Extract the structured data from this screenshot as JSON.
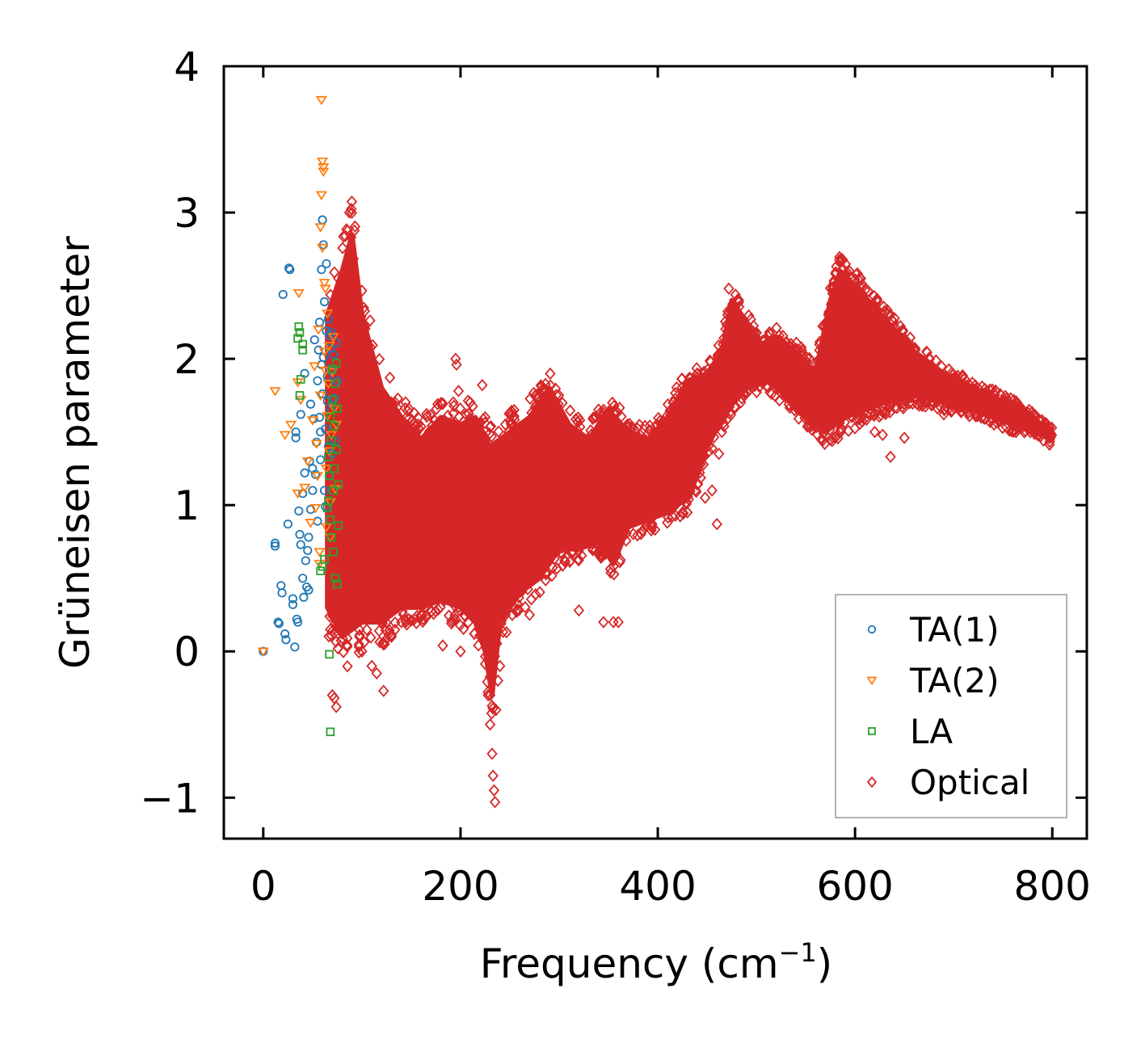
{
  "chart_data": {
    "type": "scatter",
    "title": "",
    "xlabel": "Frequency (cm",
    "xlabel_sup": "−1",
    "xlabel_close": ")",
    "ylabel": "Grüneisen parameter",
    "xlim": [
      -40,
      835
    ],
    "ylim": [
      -1.28,
      4.0
    ],
    "xticks": [
      0,
      200,
      400,
      600,
      800
    ],
    "xtick_labels": [
      "0",
      "200",
      "400",
      "600",
      "800"
    ],
    "yticks": [
      -1,
      0,
      1,
      2,
      3,
      4
    ],
    "ytick_labels": [
      "−1",
      "0",
      "1",
      "2",
      "3",
      "4"
    ],
    "grid": false,
    "legend_position": "lower-right",
    "series": [
      {
        "name": "TA(1)",
        "marker": "circle",
        "color": "#1f77b4",
        "points": [
          [
            0,
            0
          ],
          [
            12,
            0.72
          ],
          [
            12,
            0.74
          ],
          [
            15,
            0.2
          ],
          [
            16,
            0.19
          ],
          [
            18,
            0.45
          ],
          [
            19,
            0.4
          ],
          [
            20,
            2.44
          ],
          [
            22,
            0.12
          ],
          [
            23,
            0.08
          ],
          [
            25,
            0.87
          ],
          [
            26,
            2.62
          ],
          [
            27,
            2.61
          ],
          [
            30,
            0.36
          ],
          [
            30,
            0.32
          ],
          [
            32,
            0.03
          ],
          [
            33,
            1.5
          ],
          [
            33,
            1.46
          ],
          [
            34,
            0.22
          ],
          [
            35,
            0.2
          ],
          [
            36,
            0.96
          ],
          [
            37,
            0.8
          ],
          [
            38,
            0.73
          ],
          [
            38,
            1.62
          ],
          [
            40,
            0.5
          ],
          [
            40,
            1.08
          ],
          [
            41,
            0.37
          ],
          [
            42,
            1.22
          ],
          [
            42,
            1.9
          ],
          [
            43,
            0.62
          ],
          [
            44,
            0.44
          ],
          [
            45,
            0.69
          ],
          [
            46,
            0.78
          ],
          [
            46,
            0.42
          ],
          [
            47,
            1.3
          ],
          [
            48,
            0.97
          ],
          [
            48,
            1.69
          ],
          [
            50,
            1.25
          ],
          [
            50,
            1.1
          ],
          [
            51,
            1.59
          ],
          [
            52,
            2.13
          ],
          [
            53,
            1.21
          ],
          [
            54,
            1.43
          ],
          [
            55,
            1.85
          ],
          [
            55,
            0.89
          ],
          [
            56,
            2.06
          ],
          [
            57,
            2.25
          ],
          [
            57,
            1.6
          ],
          [
            58,
            1.5
          ],
          [
            58,
            1.31
          ],
          [
            59,
            1.96
          ],
          [
            59,
            2.61
          ],
          [
            60,
            2.95
          ],
          [
            60,
            1.76
          ],
          [
            61,
            2.78
          ],
          [
            61,
            2.01
          ],
          [
            62,
            2.39
          ],
          [
            62,
            1.1
          ],
          [
            63,
            1.52
          ],
          [
            63,
            0.99
          ],
          [
            64,
            2.19
          ],
          [
            64,
            2.65
          ],
          [
            65,
            1.71
          ],
          [
            65,
            1.88
          ],
          [
            66,
            2.27
          ],
          [
            66,
            1.4
          ],
          [
            67,
            2.16
          ],
          [
            67,
            1.2
          ],
          [
            68,
            1.92
          ],
          [
            68,
            2.07
          ],
          [
            69,
            2.18
          ],
          [
            69,
            1.65
          ],
          [
            70,
            1.35
          ],
          [
            71,
            2.03
          ],
          [
            72,
            1.73
          ],
          [
            73,
            1.44
          ],
          [
            74,
            2.11
          ],
          [
            75,
            1.85
          ]
        ]
      },
      {
        "name": "TA(2)",
        "marker": "triangle-down",
        "color": "#ff7f0e",
        "points": [
          [
            0,
            0
          ],
          [
            12,
            1.78
          ],
          [
            22,
            1.48
          ],
          [
            28,
            1.55
          ],
          [
            35,
            1.08
          ],
          [
            35,
            1.84
          ],
          [
            36,
            2.45
          ],
          [
            38,
            1.72
          ],
          [
            42,
            1.12
          ],
          [
            45,
            1.3
          ],
          [
            48,
            0.88
          ],
          [
            50,
            1.58
          ],
          [
            52,
            1.95
          ],
          [
            53,
            0.98
          ],
          [
            54,
            1.42
          ],
          [
            55,
            1.2
          ],
          [
            56,
            2.2
          ],
          [
            57,
            0.68
          ],
          [
            57,
            0.6
          ],
          [
            58,
            2.9
          ],
          [
            58,
            1.75
          ],
          [
            59,
            3.77
          ],
          [
            59,
            3.12
          ],
          [
            60,
            3.35
          ],
          [
            60,
            2.76
          ],
          [
            61,
            3.31
          ],
          [
            61,
            3.28
          ],
          [
            62,
            2.52
          ],
          [
            62,
            2.05
          ],
          [
            63,
            1.92
          ],
          [
            63,
            2.48
          ],
          [
            64,
            1.25
          ],
          [
            64,
            0.85
          ],
          [
            65,
            2.31
          ],
          [
            65,
            1.61
          ],
          [
            66,
            1.83
          ],
          [
            67,
            2.09
          ],
          [
            67,
            1.37
          ],
          [
            68,
            1.02
          ],
          [
            68,
            0.78
          ],
          [
            69,
            1.48
          ],
          [
            70,
            1.91
          ],
          [
            71,
            2.15
          ],
          [
            72,
            1.66
          ],
          [
            73,
            1.11
          ],
          [
            74,
            1.55
          ]
        ]
      },
      {
        "name": "LA",
        "marker": "square",
        "color": "#2ca02c",
        "points": [
          [
            35,
            2.14
          ],
          [
            36,
            2.22
          ],
          [
            37,
            2.18
          ],
          [
            37,
            1.75
          ],
          [
            38,
            1.86
          ],
          [
            40,
            2.06
          ],
          [
            40,
            2.1
          ],
          [
            58,
            0.55
          ],
          [
            60,
            0.58
          ],
          [
            62,
            0.63
          ],
          [
            65,
            0.98
          ],
          [
            66,
            1.03
          ],
          [
            67,
            -0.02
          ],
          [
            68,
            -0.55
          ],
          [
            66,
            1.33
          ],
          [
            67,
            1.2
          ],
          [
            68,
            1.6
          ],
          [
            68,
            0.9
          ],
          [
            69,
            1.44
          ],
          [
            69,
            0.78
          ],
          [
            70,
            1.93
          ],
          [
            70,
            1.72
          ],
          [
            71,
            1.1
          ],
          [
            71,
            0.68
          ],
          [
            72,
            1.54
          ],
          [
            72,
            1.25
          ],
          [
            73,
            0.5
          ],
          [
            73,
            1.83
          ],
          [
            74,
            1.97
          ],
          [
            74,
            1.38
          ],
          [
            75,
            0.46
          ],
          [
            75,
            1.66
          ],
          [
            76,
            1.14
          ],
          [
            76,
            0.86
          ]
        ]
      },
      {
        "name": "Optical",
        "marker": "diamond",
        "color": "#d62728",
        "envelope_min": [
          [
            65,
            0.3
          ],
          [
            80,
            0.1
          ],
          [
            100,
            0.2
          ],
          [
            120,
            0.2
          ],
          [
            140,
            0.3
          ],
          [
            160,
            0.3
          ],
          [
            180,
            0.35
          ],
          [
            200,
            0.3
          ],
          [
            215,
            0.2
          ],
          [
            225,
            0.0
          ],
          [
            232,
            -0.3
          ],
          [
            240,
            0.2
          ],
          [
            260,
            0.4
          ],
          [
            280,
            0.5
          ],
          [
            300,
            0.7
          ],
          [
            320,
            0.7
          ],
          [
            340,
            0.75
          ],
          [
            355,
            0.6
          ],
          [
            370,
            0.85
          ],
          [
            390,
            0.9
          ],
          [
            410,
            0.95
          ],
          [
            430,
            1.05
          ],
          [
            440,
            1.2
          ],
          [
            450,
            1.4
          ],
          [
            470,
            1.65
          ],
          [
            490,
            1.8
          ],
          [
            510,
            1.85
          ],
          [
            530,
            1.75
          ],
          [
            550,
            1.6
          ],
          [
            570,
            1.5
          ],
          [
            590,
            1.6
          ],
          [
            610,
            1.65
          ],
          [
            630,
            1.7
          ],
          [
            660,
            1.75
          ],
          [
            690,
            1.7
          ],
          [
            720,
            1.65
          ],
          [
            760,
            1.55
          ],
          [
            800,
            1.45
          ]
        ],
        "envelope_max": [
          [
            65,
            2.3
          ],
          [
            80,
            2.6
          ],
          [
            90,
            2.85
          ],
          [
            100,
            2.3
          ],
          [
            120,
            1.8
          ],
          [
            140,
            1.6
          ],
          [
            160,
            1.45
          ],
          [
            180,
            1.6
          ],
          [
            200,
            1.55
          ],
          [
            215,
            1.6
          ],
          [
            230,
            1.4
          ],
          [
            250,
            1.5
          ],
          [
            270,
            1.6
          ],
          [
            290,
            1.8
          ],
          [
            310,
            1.55
          ],
          [
            330,
            1.45
          ],
          [
            350,
            1.65
          ],
          [
            370,
            1.5
          ],
          [
            390,
            1.45
          ],
          [
            410,
            1.6
          ],
          [
            430,
            1.85
          ],
          [
            450,
            1.9
          ],
          [
            465,
            2.05
          ],
          [
            475,
            2.4
          ],
          [
            490,
            2.25
          ],
          [
            505,
            2.1
          ],
          [
            520,
            2.15
          ],
          [
            540,
            2.05
          ],
          [
            560,
            1.9
          ],
          [
            575,
            2.4
          ],
          [
            585,
            2.6
          ],
          [
            600,
            2.5
          ],
          [
            620,
            2.35
          ],
          [
            640,
            2.2
          ],
          [
            660,
            2.05
          ],
          [
            690,
            1.9
          ],
          [
            720,
            1.8
          ],
          [
            760,
            1.68
          ],
          [
            800,
            1.5
          ]
        ],
        "outliers": [
          [
            68,
            0.15
          ],
          [
            70,
            -0.3
          ],
          [
            72,
            -0.32
          ],
          [
            74,
            -0.38
          ],
          [
            85,
            0.2
          ],
          [
            100,
            0.0
          ],
          [
            110,
            -0.1
          ],
          [
            115,
            -0.15
          ],
          [
            122,
            -0.27
          ],
          [
            123,
            0.05
          ],
          [
            130,
            0.1
          ],
          [
            140,
            0.2
          ],
          [
            160,
            0.25
          ],
          [
            182,
            0.04
          ],
          [
            200,
            0.0
          ],
          [
            195,
            2.0
          ],
          [
            196,
            1.96
          ],
          [
            198,
            1.78
          ],
          [
            222,
            1.82
          ],
          [
            225,
            1.6
          ],
          [
            228,
            -0.3
          ],
          [
            230,
            -0.5
          ],
          [
            232,
            -0.7
          ],
          [
            233,
            -0.85
          ],
          [
            234,
            -0.95
          ],
          [
            235,
            -1.03
          ],
          [
            236,
            -0.4
          ],
          [
            238,
            -0.2
          ],
          [
            240,
            -0.1
          ],
          [
            255,
            0.3
          ],
          [
            270,
            0.25
          ],
          [
            300,
            1.6
          ],
          [
            320,
            0.28
          ],
          [
            345,
            0.2
          ],
          [
            355,
            0.2
          ],
          [
            360,
            0.2
          ],
          [
            430,
            0.95
          ],
          [
            448,
            1.05
          ],
          [
            455,
            1.1
          ],
          [
            460,
            0.87
          ],
          [
            462,
            1.35
          ],
          [
            465,
            1.5
          ],
          [
            468,
            1.62
          ],
          [
            472,
            2.48
          ],
          [
            620,
            1.5
          ],
          [
            628,
            1.48
          ],
          [
            636,
            1.33
          ],
          [
            650,
            1.46
          ],
          [
            665,
            1.68
          ],
          [
            690,
            1.62
          ]
        ]
      }
    ]
  }
}
